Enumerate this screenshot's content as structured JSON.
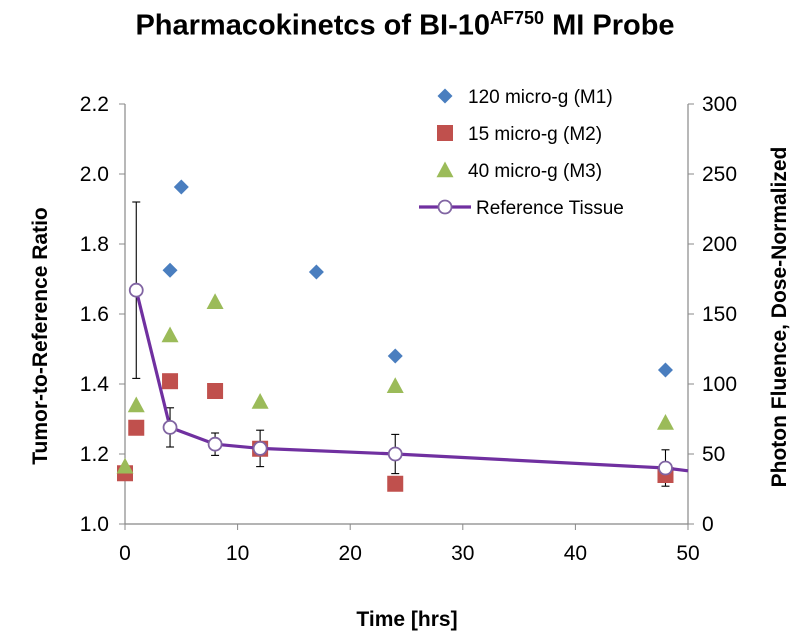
{
  "chart_data": {
    "type": "scatter",
    "title": "Pharmacokinetcs of BI-10",
    "title_superscript": "AF750",
    "title_suffix": " MI Probe",
    "xlabel": "Time [hrs]",
    "ylabel": "Tumor-to-Reference Ratio",
    "y2label": "Photon Fluence, Dose-Normalized",
    "xlim": [
      0,
      50
    ],
    "ylim": [
      1.0,
      2.2
    ],
    "y2lim": [
      0,
      300
    ],
    "xticks": [
      "0",
      "10",
      "20",
      "30",
      "40",
      "50"
    ],
    "yticks": [
      "1.0",
      "1.2",
      "1.4",
      "1.6",
      "1.8",
      "2.0",
      "2.2"
    ],
    "y2ticks": [
      "0",
      "50",
      "100",
      "150",
      "200",
      "250",
      "300"
    ],
    "legend_position": "top-right",
    "series": [
      {
        "name": "120 micro-g (M1)",
        "axis": "left",
        "marker": "diamond",
        "color": "#4a7ebf",
        "points": [
          [
            4,
            1.725
          ],
          [
            5,
            1.963
          ],
          [
            17,
            1.72
          ],
          [
            24,
            1.48
          ],
          [
            48,
            1.44
          ]
        ]
      },
      {
        "name": "15 micro-g (M2)",
        "axis": "left",
        "marker": "square",
        "color": "#c0504d",
        "points": [
          [
            0,
            1.145
          ],
          [
            1,
            1.275
          ],
          [
            4,
            1.408
          ],
          [
            8,
            1.38
          ],
          [
            12,
            1.215
          ],
          [
            24,
            1.115
          ],
          [
            48,
            1.14
          ]
        ]
      },
      {
        "name": "40 micro-g (M3)",
        "axis": "left",
        "marker": "triangle",
        "color": "#9bbb59",
        "points": [
          [
            0,
            1.165
          ],
          [
            1,
            1.34
          ],
          [
            4,
            1.54
          ],
          [
            8,
            1.635
          ],
          [
            12,
            1.35
          ],
          [
            24,
            1.395
          ],
          [
            48,
            1.29
          ]
        ]
      },
      {
        "name": "Reference Tissue",
        "axis": "right",
        "marker": "circle-line",
        "color": "#7030a0",
        "points": [
          [
            1,
            167
          ],
          [
            4,
            69
          ],
          [
            8,
            57
          ],
          [
            12,
            54
          ],
          [
            24,
            50
          ],
          [
            48,
            40
          ],
          [
            50,
            38
          ]
        ],
        "error": [
          63,
          14,
          8,
          13,
          14,
          13,
          null
        ]
      }
    ]
  }
}
